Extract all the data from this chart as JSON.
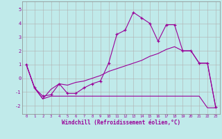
{
  "xlabel": "Windchill (Refroidissement éolien,°C)",
  "xlim": [
    -0.5,
    23.5
  ],
  "ylim": [
    -2.6,
    5.6
  ],
  "bg_color": "#c0eaea",
  "line_color": "#990099",
  "grid_color": "#b0b0b0",
  "xticks": [
    0,
    1,
    2,
    3,
    4,
    5,
    6,
    7,
    8,
    9,
    10,
    11,
    12,
    13,
    14,
    15,
    16,
    17,
    18,
    19,
    20,
    21,
    22,
    23
  ],
  "yticks": [
    -2,
    -1,
    0,
    1,
    2,
    3,
    4,
    5
  ],
  "line1_x": [
    0,
    1,
    2,
    3,
    4,
    5,
    6,
    7,
    8,
    9,
    10,
    11,
    12,
    13,
    14,
    15,
    16,
    17,
    18,
    19,
    20,
    21,
    22,
    23
  ],
  "line1_y": [
    1.0,
    -0.7,
    -1.3,
    -1.2,
    -0.4,
    -1.1,
    -1.1,
    -0.7,
    -0.4,
    -0.2,
    1.1,
    3.2,
    3.5,
    4.8,
    4.4,
    4.0,
    2.7,
    3.9,
    3.9,
    2.0,
    2.0,
    1.1,
    1.1,
    -2.1
  ],
  "line2_x": [
    0,
    1,
    2,
    3,
    4,
    5,
    6,
    7,
    8,
    9,
    10,
    11,
    12,
    13,
    14,
    15,
    16,
    17,
    18,
    19,
    20,
    21,
    22,
    23
  ],
  "line2_y": [
    1.0,
    -0.7,
    -1.5,
    -1.3,
    -1.3,
    -1.3,
    -1.3,
    -1.3,
    -1.3,
    -1.3,
    -1.3,
    -1.3,
    -1.3,
    -1.3,
    -1.3,
    -1.3,
    -1.3,
    -1.3,
    -1.3,
    -1.3,
    -1.3,
    -1.3,
    -2.15,
    -2.15
  ],
  "line3_x": [
    0,
    1,
    2,
    3,
    4,
    5,
    6,
    7,
    8,
    9,
    10,
    11,
    12,
    13,
    14,
    15,
    16,
    17,
    18,
    19,
    20,
    21,
    22,
    23
  ],
  "line3_y": [
    1.0,
    -0.7,
    -1.5,
    -0.8,
    -0.4,
    -0.5,
    -0.3,
    -0.2,
    0.0,
    0.2,
    0.5,
    0.7,
    0.9,
    1.1,
    1.3,
    1.6,
    1.8,
    2.1,
    2.3,
    2.0,
    2.0,
    1.1,
    1.1,
    -2.1
  ]
}
